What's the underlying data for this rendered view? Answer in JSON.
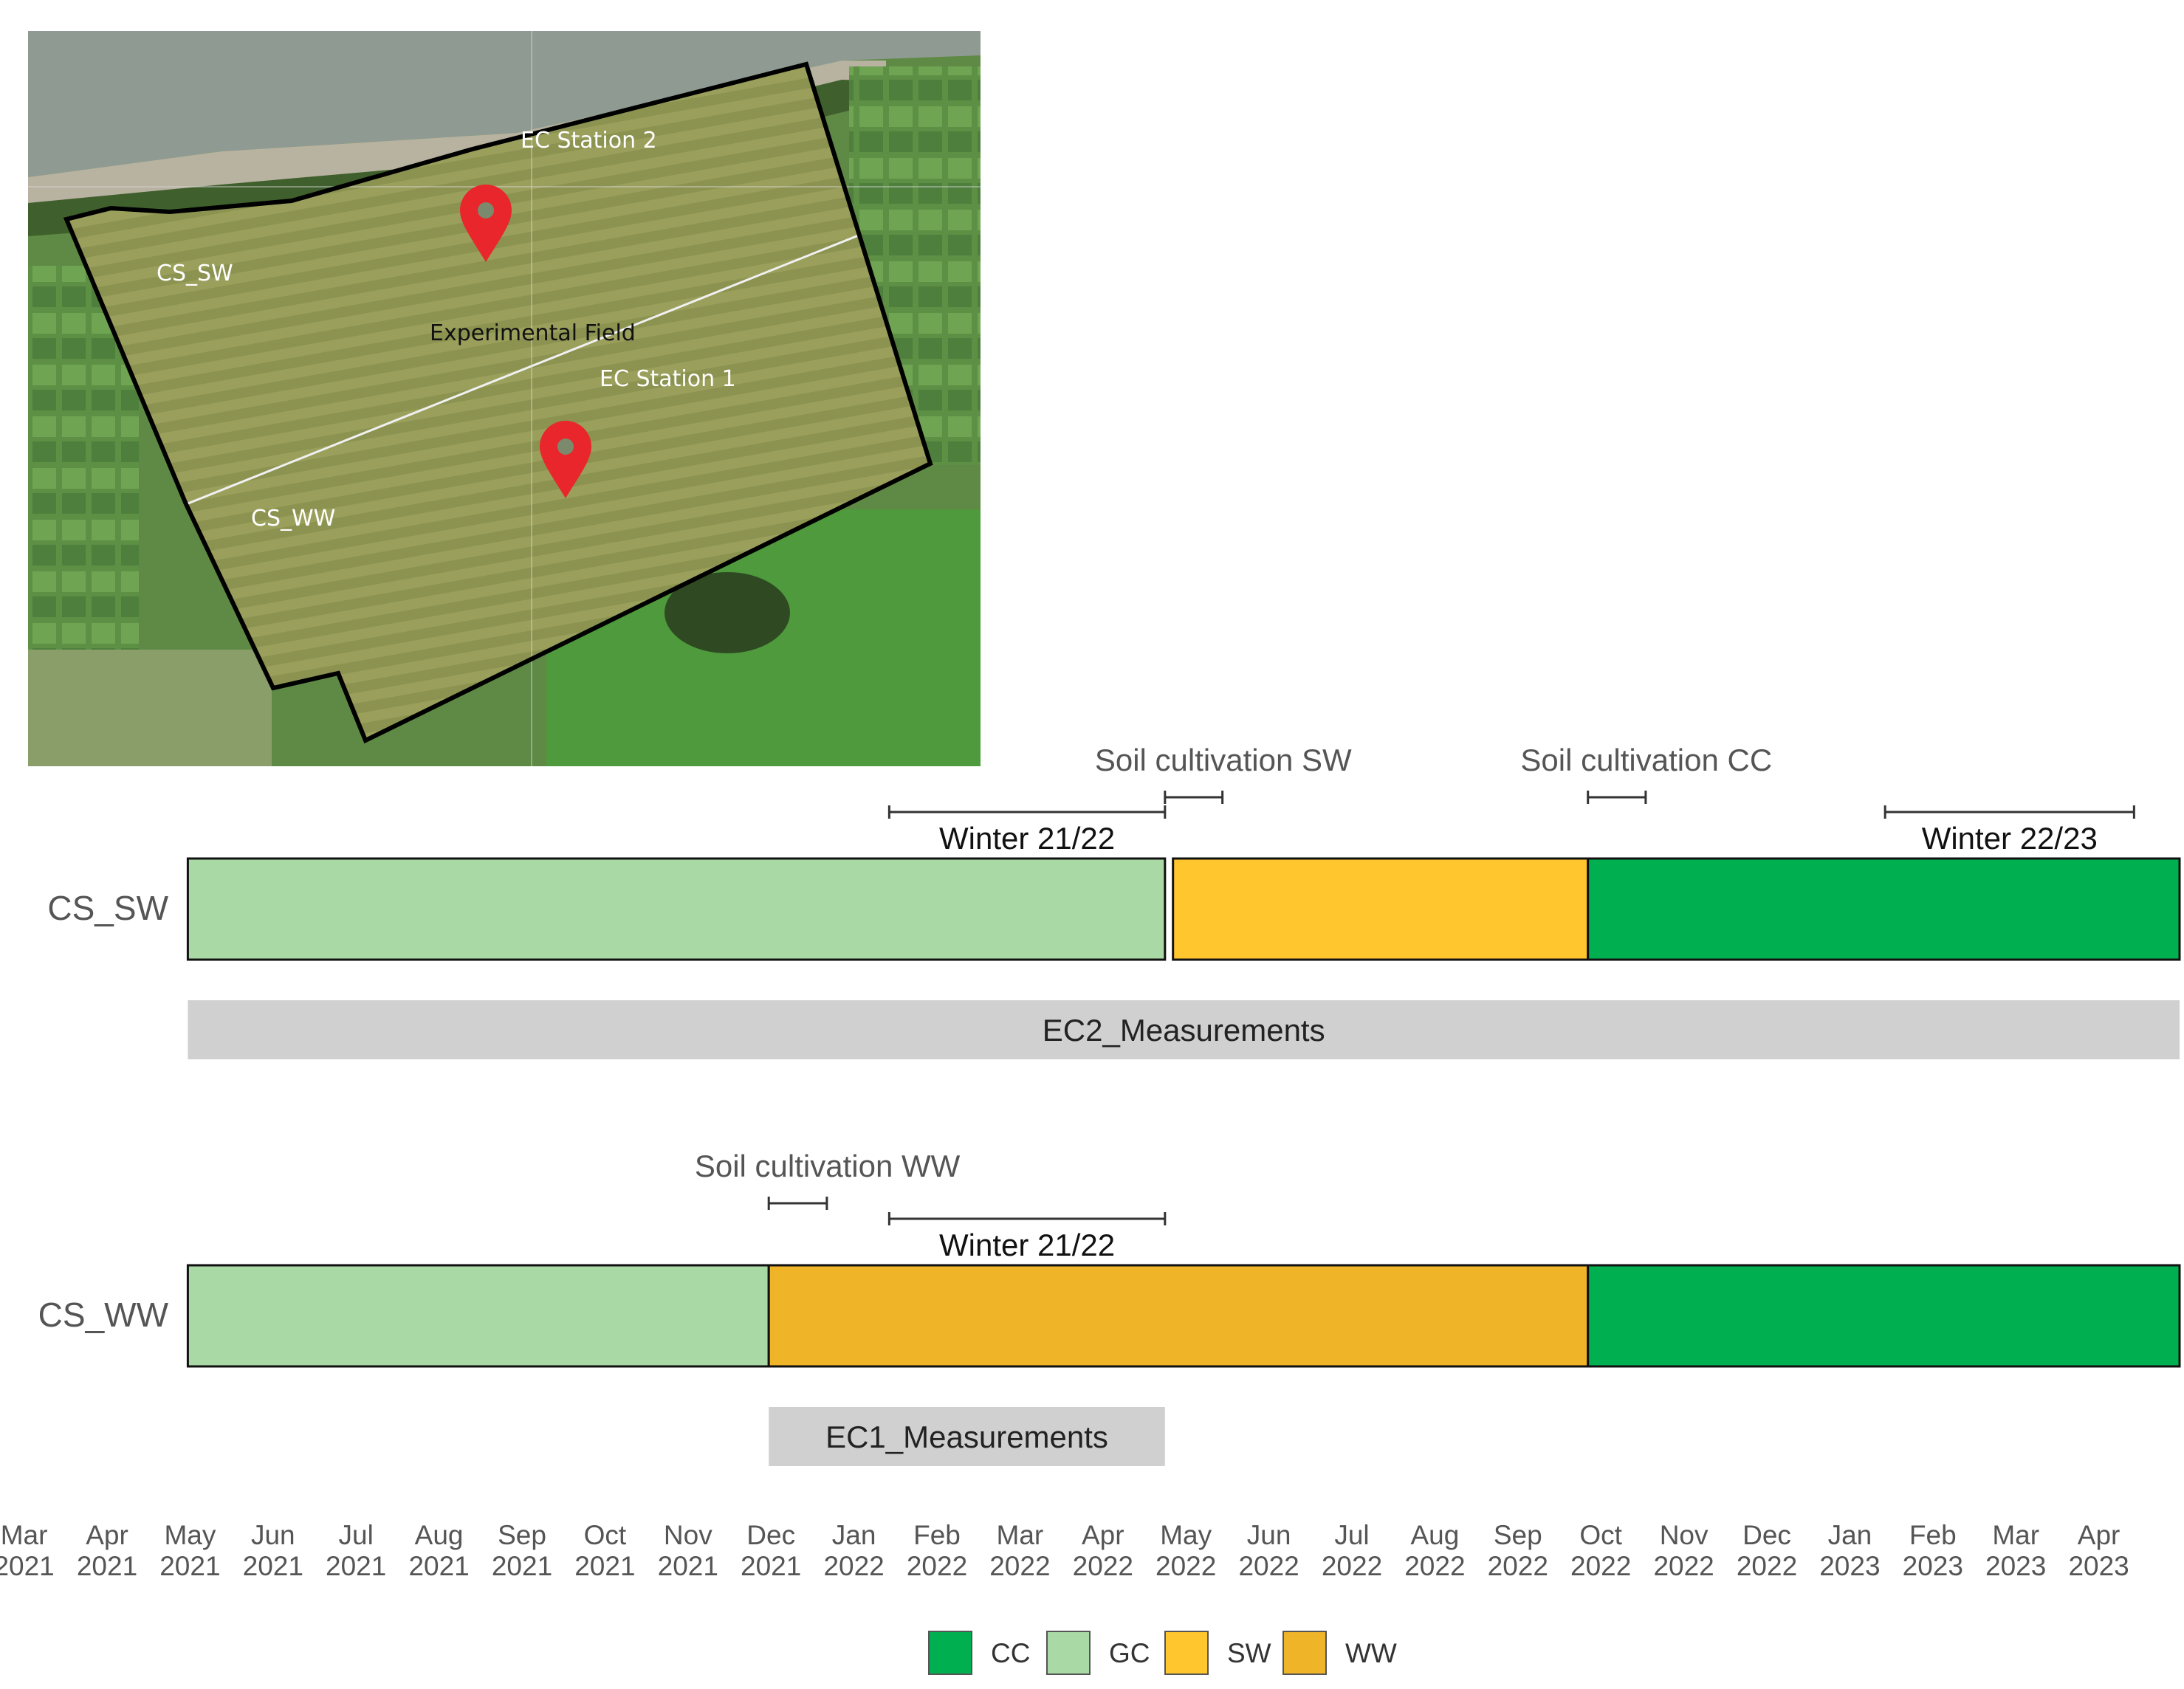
{
  "map": {
    "labels": {
      "ec_station_2": "EC Station 2",
      "ec_station_1": "EC Station 1",
      "experimental_field": "Experimental Field",
      "cs_sw": "CS_SW",
      "cs_ww": "CS_WW"
    }
  },
  "chart_data": {
    "type": "timeline",
    "x_axis": {
      "start": "2021-03",
      "end": "2023-04",
      "ticks": [
        {
          "month": "Mar",
          "year": "2021"
        },
        {
          "month": "Apr",
          "year": "2021"
        },
        {
          "month": "May",
          "year": "2021"
        },
        {
          "month": "Jun",
          "year": "2021"
        },
        {
          "month": "Jul",
          "year": "2021"
        },
        {
          "month": "Aug",
          "year": "2021"
        },
        {
          "month": "Sep",
          "year": "2021"
        },
        {
          "month": "Oct",
          "year": "2021"
        },
        {
          "month": "Nov",
          "year": "2021"
        },
        {
          "month": "Dec",
          "year": "2021"
        },
        {
          "month": "Jan",
          "year": "2022"
        },
        {
          "month": "Feb",
          "year": "2022"
        },
        {
          "month": "Mar",
          "year": "2022"
        },
        {
          "month": "Apr",
          "year": "2022"
        },
        {
          "month": "May",
          "year": "2022"
        },
        {
          "month": "Jun",
          "year": "2022"
        },
        {
          "month": "Jul",
          "year": "2022"
        },
        {
          "month": "Aug",
          "year": "2022"
        },
        {
          "month": "Sep",
          "year": "2022"
        },
        {
          "month": "Oct",
          "year": "2022"
        },
        {
          "month": "Nov",
          "year": "2022"
        },
        {
          "month": "Dec",
          "year": "2022"
        },
        {
          "month": "Jan",
          "year": "2023"
        },
        {
          "month": "Feb",
          "year": "2023"
        },
        {
          "month": "Mar",
          "year": "2023"
        },
        {
          "month": "Apr",
          "year": "2023"
        }
      ]
    },
    "rows": [
      {
        "label": "CS_SW",
        "segments": [
          {
            "crop": "GC",
            "start": "2021-04-01",
            "end": "2022-03-25"
          },
          {
            "crop": "SW",
            "start": "2022-03-28",
            "end": "2022-08-28"
          },
          {
            "crop": "CC",
            "start": "2022-08-28",
            "end": "2023-04-01"
          }
        ],
        "measurement": {
          "label": "EC2_Measurements",
          "start": "2021-04-01",
          "end": "2023-04-01"
        },
        "intervals": [
          {
            "label": "Winter 21/22",
            "kind": "winter",
            "start": "2021-12-15",
            "end": "2022-03-25"
          },
          {
            "label": "Soil cultivation SW",
            "kind": "cultivation",
            "start": "2022-03-25",
            "end": "2022-04-15"
          },
          {
            "label": "Soil cultivation CC",
            "kind": "cultivation",
            "start": "2022-08-28",
            "end": "2022-09-18"
          },
          {
            "label": "Winter 22/23",
            "kind": "winter",
            "start": "2022-12-15",
            "end": "2023-03-15"
          }
        ]
      },
      {
        "label": "CS_WW",
        "segments": [
          {
            "crop": "GC",
            "start": "2021-04-01",
            "end": "2021-11-01"
          },
          {
            "crop": "WW",
            "start": "2021-11-01",
            "end": "2022-08-28"
          },
          {
            "crop": "CC",
            "start": "2022-08-28",
            "end": "2023-04-01"
          }
        ],
        "measurement": {
          "label": "EC1_Measurements",
          "start": "2021-11-01",
          "end": "2022-03-25"
        },
        "intervals": [
          {
            "label": "Soil cultivation WW",
            "kind": "cultivation",
            "start": "2021-11-01",
            "end": "2021-11-22"
          },
          {
            "label": "Winter 21/22",
            "kind": "winter",
            "start": "2021-12-15",
            "end": "2022-03-25"
          }
        ]
      }
    ],
    "legend": [
      {
        "key": "CC",
        "label": "CC",
        "color": "#00b050"
      },
      {
        "key": "GC",
        "label": "GC",
        "color": "#a9d9a5"
      },
      {
        "key": "SW",
        "label": "SW",
        "color": "#ffc62e"
      },
      {
        "key": "WW",
        "label": "WW",
        "color": "#f0b429"
      }
    ],
    "measurement_color": "#d0d0d0",
    "legend_position": "bottom-center"
  }
}
